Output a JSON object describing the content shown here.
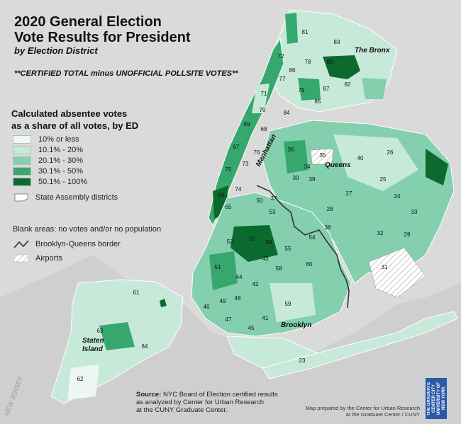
{
  "title_line1": "2020 General Election",
  "title_line2": "Vote Results for President",
  "subtitle": "by Election District",
  "note": "**CERTIFIED TOTAL minus UNOFFICIAL POLLSITE VOTES**",
  "legend": {
    "title_line1": "Calculated absentee votes",
    "title_line2": "as a share of all votes, by ED",
    "classes": [
      {
        "label": "10% or less",
        "color": "#eef7f3"
      },
      {
        "label": "10.1% - 20%",
        "color": "#c7e9da"
      },
      {
        "label": "20.1% - 30%",
        "color": "#84cfae"
      },
      {
        "label": "30.1% - 50%",
        "color": "#36a86e"
      },
      {
        "label": "50.1% - 100%",
        "color": "#0b6b2e"
      }
    ],
    "assembly": "State Assembly districts",
    "blank": "Blank areas: no votes and/or no population",
    "border": "Brooklyn-Queens border",
    "airports": "Airports"
  },
  "boroughs": {
    "bronx": "The Bronx",
    "manhattan": "Manhattan",
    "queens": "Queens",
    "brooklyn": "Brooklyn",
    "staten_line1": "Staten",
    "staten_line2": "Island"
  },
  "districts": [
    "81",
    "83",
    "72",
    "86",
    "78",
    "80",
    "77",
    "79",
    "87",
    "82",
    "71",
    "85",
    "84",
    "70",
    "69",
    "68",
    "67",
    "76",
    "73",
    "75",
    "74",
    "66",
    "65",
    "61",
    "63",
    "64",
    "62",
    "36",
    "35",
    "40",
    "26",
    "34",
    "30",
    "39",
    "25",
    "27",
    "24",
    "33",
    "37",
    "50",
    "53",
    "38",
    "54",
    "28",
    "32",
    "29",
    "52",
    "57",
    "56",
    "55",
    "60",
    "31",
    "51",
    "58",
    "43",
    "44",
    "42",
    "46",
    "49",
    "48",
    "59",
    "41",
    "47",
    "45",
    "23"
  ],
  "source_label": "Source:",
  "source_text_1": "NYC Board of Election certified results",
  "source_text_2": "as analyzed by Center for Urban Research",
  "source_text_3": "at the CUNY Graduate Center.",
  "credit_1": "Map prepared by the Center for Urban Research",
  "credit_2": "at the Graduate Center / CUNY",
  "logo_text": "THE GRADUATE CENTER CITY UNIVERSITY OF NEW YORK",
  "water_label": "NEW JERSEY"
}
